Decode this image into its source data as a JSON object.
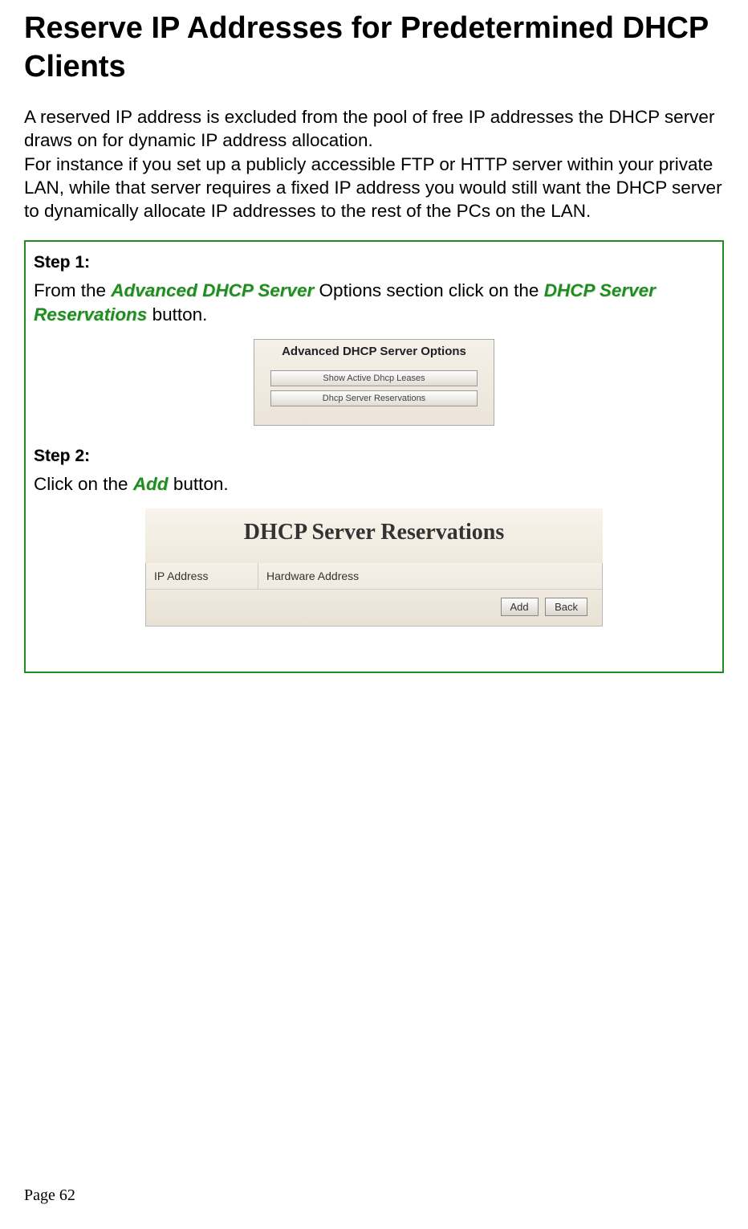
{
  "title": "Reserve IP Addresses for Predetermined DHCP Clients",
  "intro_para1": "A reserved IP address is excluded from the pool of free IP addresses the DHCP server draws on for dynamic IP address allocation.",
  "intro_para2": "For instance if you set up a publicly accessible FTP or HTTP server within your private LAN, while that server requires a fixed IP address you would still want the DHCP server to dynamically allocate IP addresses to the rest of the PCs on the LAN.",
  "step1": {
    "label": "Step 1:",
    "text_parts": {
      "p1": "From the ",
      "h1": "Advanced DHCP Server",
      "p2": " Options section click on the ",
      "h2": "DHCP Server Reservations",
      "p3": " button."
    },
    "figure": {
      "title": "Advanced DHCP Server Options",
      "btn1": "Show Active Dhcp Leases",
      "btn2": "Dhcp Server Reservations"
    }
  },
  "step2": {
    "label": "Step 2:",
    "text_parts": {
      "p1": "Click on the ",
      "h1": "Add",
      "p2": " button."
    },
    "figure": {
      "title": "DHCP Server Reservations",
      "col1": "IP Address",
      "col2": "Hardware Address",
      "btn1": "Add",
      "btn2": "Back"
    }
  },
  "page_number": "Page 62"
}
